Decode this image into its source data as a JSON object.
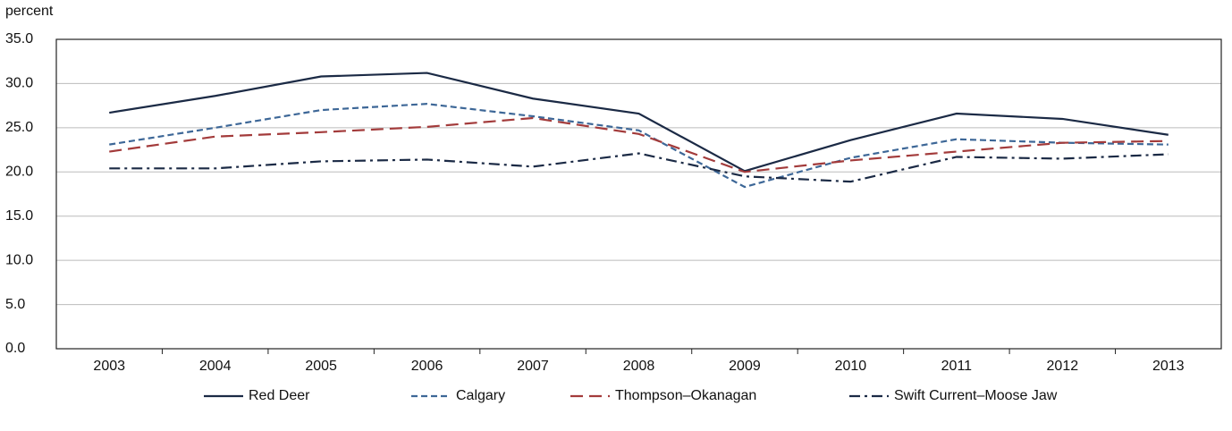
{
  "chart_data": {
    "type": "line",
    "ylabel": "percent",
    "categories": [
      "2003",
      "2004",
      "2005",
      "2006",
      "2007",
      "2008",
      "2009",
      "2010",
      "2011",
      "2012",
      "2013"
    ],
    "series": [
      {
        "name": "Red Deer",
        "color": "#1b2a45",
        "dash": "solid",
        "values": [
          26.7,
          28.6,
          30.8,
          31.2,
          28.3,
          26.6,
          20.1,
          23.6,
          26.6,
          26.0,
          24.2
        ]
      },
      {
        "name": "Calgary",
        "color": "#3d6797",
        "dash": "dashed",
        "values": [
          23.1,
          25.0,
          27.0,
          27.7,
          26.3,
          24.7,
          18.3,
          21.6,
          23.7,
          23.3,
          23.1
        ]
      },
      {
        "name": "Thompson–Okanagan",
        "color": "#a33b3b",
        "dash": "longdash",
        "values": [
          22.3,
          24.0,
          24.5,
          25.1,
          26.1,
          24.3,
          20.0,
          21.3,
          22.3,
          23.3,
          23.5
        ]
      },
      {
        "name": "Swift Current–Moose Jaw",
        "color": "#1b2a45",
        "dash": "dashdot",
        "values": [
          20.4,
          20.4,
          21.2,
          21.4,
          20.6,
          22.1,
          19.5,
          18.9,
          21.7,
          21.5,
          22.0
        ]
      }
    ],
    "ylim": [
      0,
      35
    ],
    "yticks": [
      {
        "value": 0,
        "label": "0.0"
      },
      {
        "value": 5,
        "label": "5.0"
      },
      {
        "value": 10,
        "label": "10.0"
      },
      {
        "value": 15,
        "label": "15.0"
      },
      {
        "value": 20,
        "label": "20.0"
      },
      {
        "value": 25,
        "label": "25.0"
      },
      {
        "value": 30,
        "label": "30.0"
      },
      {
        "value": 35,
        "label": "35.0"
      }
    ],
    "grid": true,
    "legend": "bottom"
  }
}
